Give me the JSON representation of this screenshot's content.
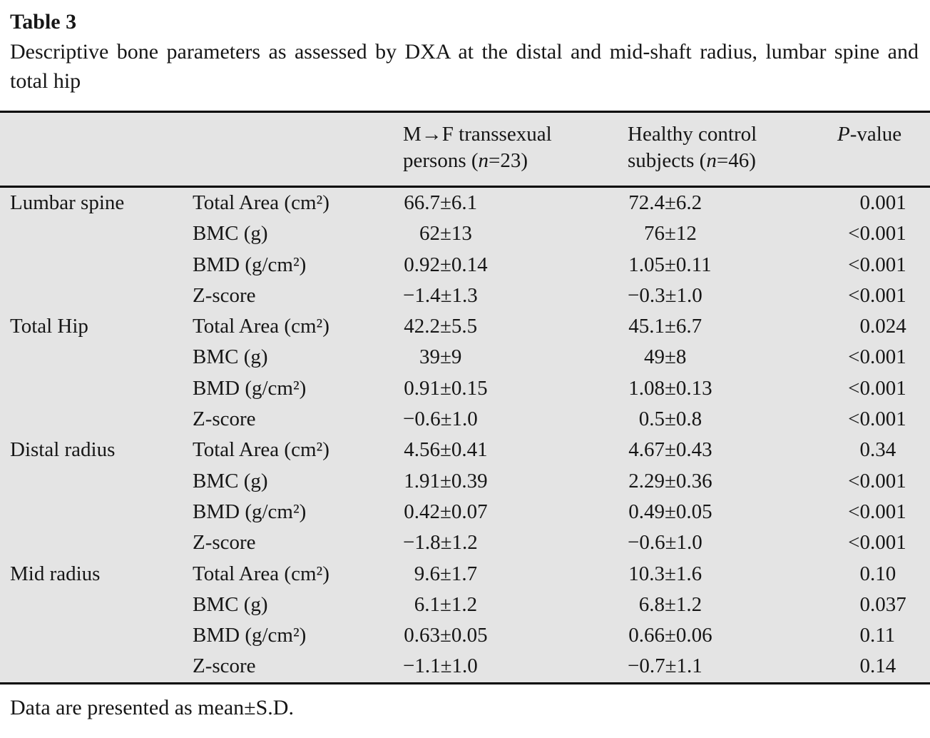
{
  "page": {
    "title": "Table 3",
    "caption": "Descriptive bone parameters as assessed by DXA at the distal and mid-shaft radius, lumbar spine and total hip",
    "footnote": "Data are presented as mean±S.D."
  },
  "colors": {
    "table_shading": "#e4e4e4",
    "rule": "#000000",
    "text": "#161616"
  },
  "table": {
    "header": {
      "group1_line1": "M→F transsexual",
      "group1_line2_pre": "persons (",
      "group1_line2_var": "n",
      "group1_line2_post": "=23)",
      "group2_line1": "Healthy control",
      "group2_line2_pre": "subjects (",
      "group2_line2_var": "n",
      "group2_line2_post": "=46)",
      "p_italic": "P",
      "p_rest": "-value"
    },
    "rows": [
      {
        "region": "Lumbar spine",
        "param": "Total Area (cm²)",
        "g1": "66.7±6.1",
        "g2": "72.4±6.2",
        "p": "0.001"
      },
      {
        "region": "",
        "param": "BMC (g)",
        "g1": "62±13",
        "g2": "76±12",
        "p": "<0.001"
      },
      {
        "region": "",
        "param": "BMD (g/cm²)",
        "g1": "0.92±0.14",
        "g2": "1.05±0.11",
        "p": "<0.001"
      },
      {
        "region": "",
        "param": "Z-score",
        "g1": "−1.4±1.3",
        "g2": "−0.3±1.0",
        "p": "<0.001"
      },
      {
        "region": "Total Hip",
        "param": "Total Area (cm²)",
        "g1": "42.2±5.5",
        "g2": "45.1±6.7",
        "p": "0.024"
      },
      {
        "region": "",
        "param": "BMC (g)",
        "g1": "39±9",
        "g2": "49±8",
        "p": "<0.001"
      },
      {
        "region": "",
        "param": "BMD (g/cm²)",
        "g1": "0.91±0.15",
        "g2": "1.08±0.13",
        "p": "<0.001"
      },
      {
        "region": "",
        "param": "Z-score",
        "g1": "−0.6±1.0",
        "g2": "0.5±0.8",
        "p": "<0.001"
      },
      {
        "region": "Distal radius",
        "param": "Total Area (cm²)",
        "g1": "4.56±0.41",
        "g2": "4.67±0.43",
        "p": "0.34"
      },
      {
        "region": "",
        "param": "BMC (g)",
        "g1": "1.91±0.39",
        "g2": "2.29±0.36",
        "p": "<0.001"
      },
      {
        "region": "",
        "param": "BMD (g/cm²)",
        "g1": "0.42±0.07",
        "g2": "0.49±0.05",
        "p": "<0.001"
      },
      {
        "region": "",
        "param": "Z-score",
        "g1": "−1.8±1.2",
        "g2": "−0.6±1.0",
        "p": "<0.001"
      },
      {
        "region": "Mid radius",
        "param": "Total Area (cm²)",
        "g1": "9.6±1.7",
        "g2": "10.3±1.6",
        "p": "0.10"
      },
      {
        "region": "",
        "param": "BMC (g)",
        "g1": "6.1±1.2",
        "g2": "6.8±1.2",
        "p": "0.037"
      },
      {
        "region": "",
        "param": "BMD (g/cm²)",
        "g1": "0.63±0.05",
        "g2": "0.66±0.06",
        "p": "0.11"
      },
      {
        "region": "",
        "param": "Z-score",
        "g1": "−1.1±1.0",
        "g2": "−0.7±1.1",
        "p": "0.14"
      }
    ]
  }
}
